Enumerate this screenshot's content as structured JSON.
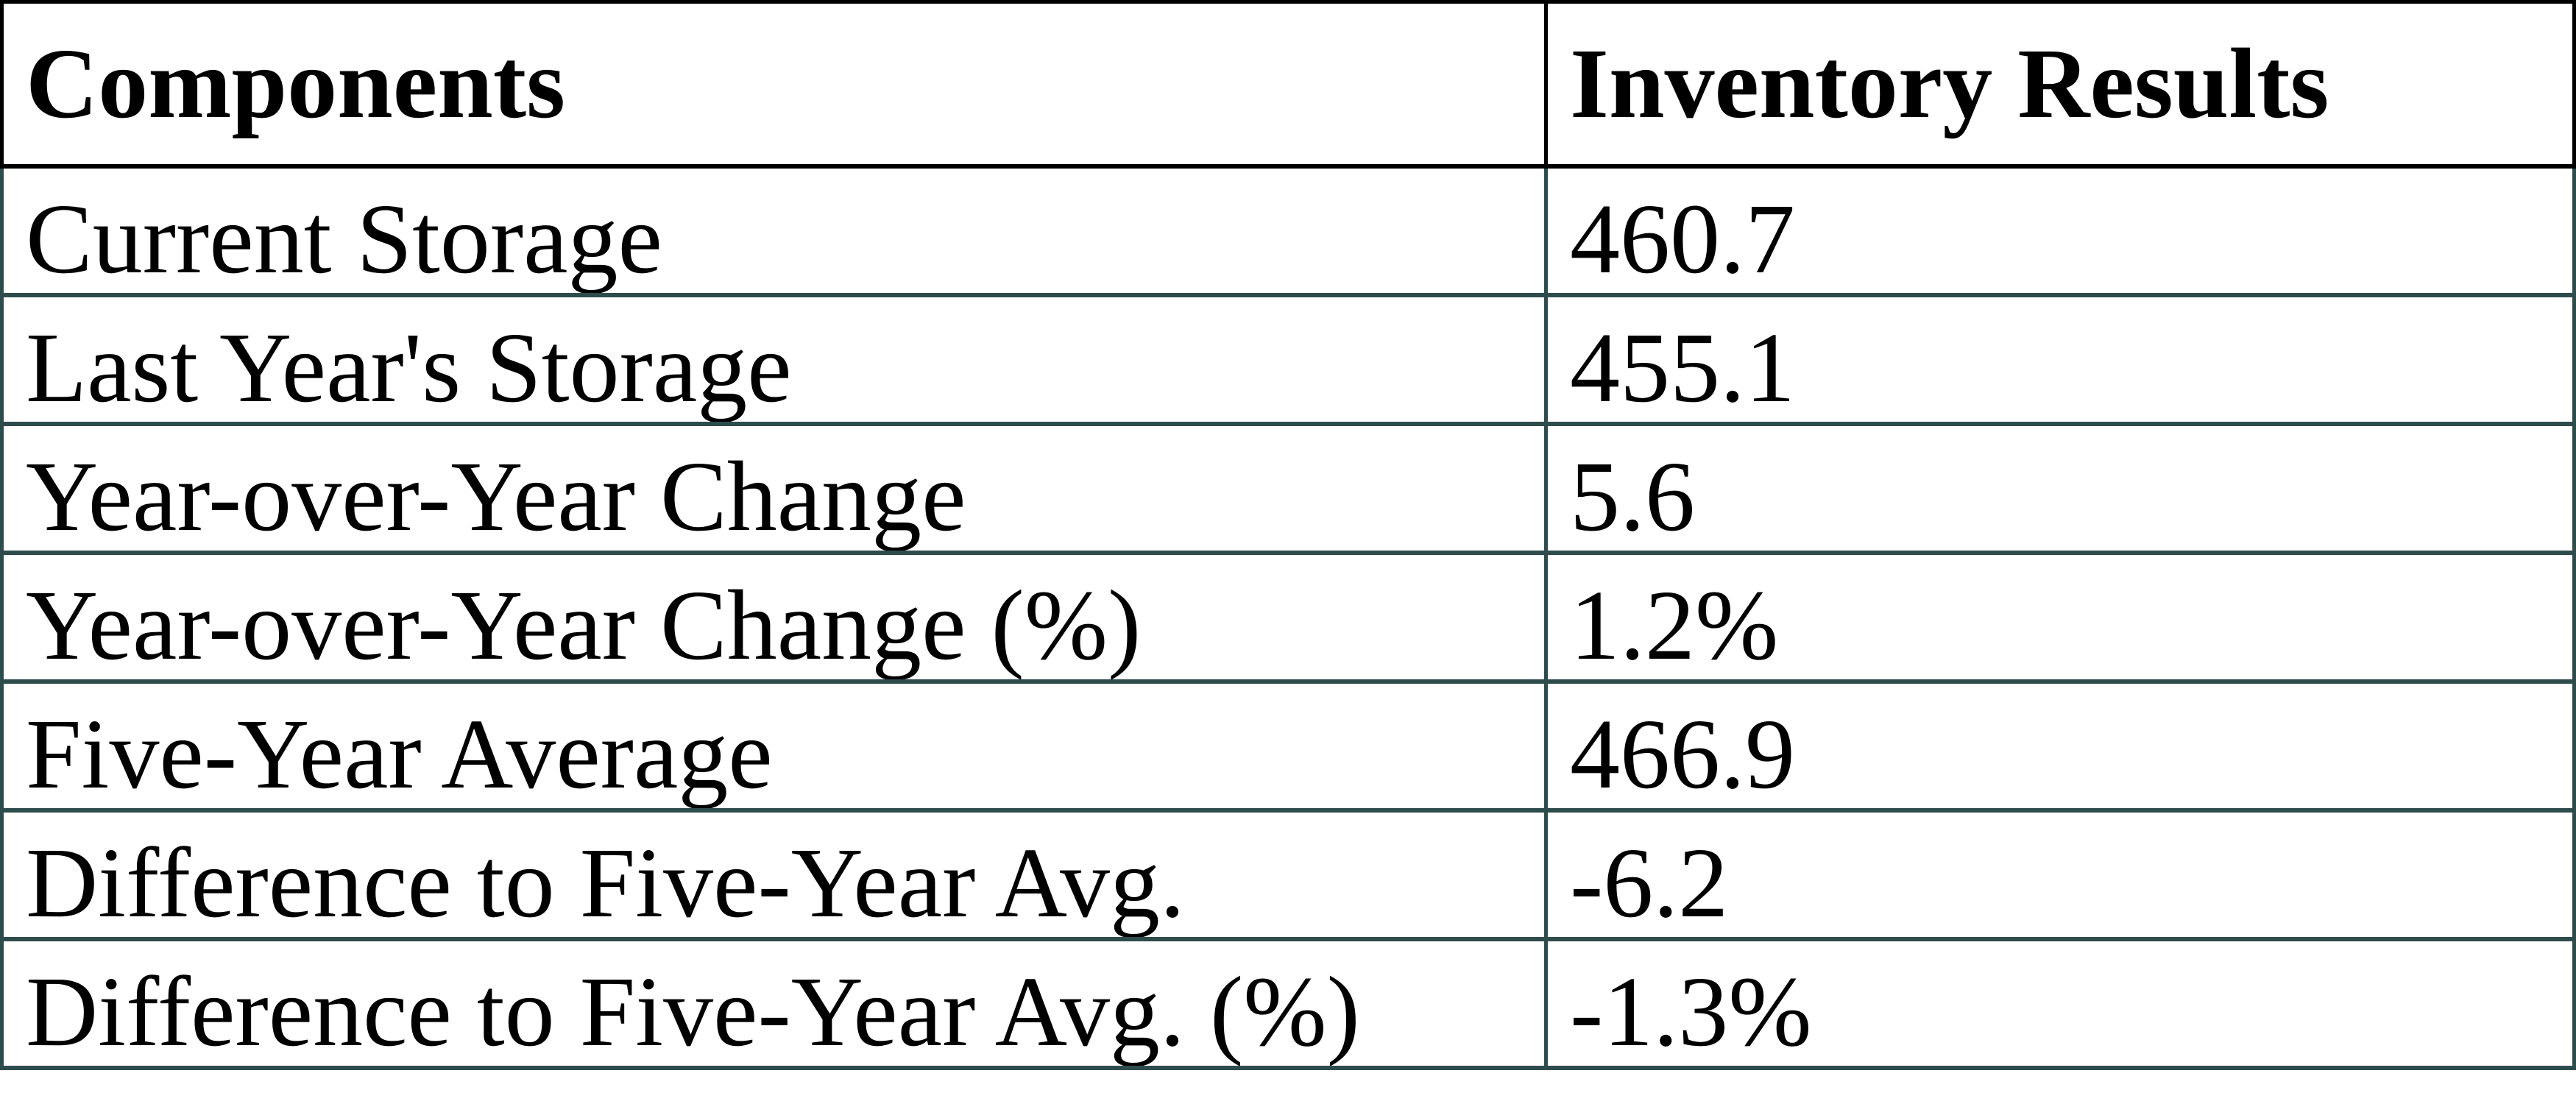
{
  "table": {
    "columns": [
      {
        "label": "Components"
      },
      {
        "label": "Inventory Results"
      }
    ],
    "rows": [
      {
        "component": "Current Storage",
        "value": "460.7"
      },
      {
        "component": "Last Year's Storage",
        "value": "455.1"
      },
      {
        "component": "Year-over-Year Change",
        "value": "5.6"
      },
      {
        "component": "Year-over-Year Change (%)",
        "value": "1.2%"
      },
      {
        "component": "Five-Year Average",
        "value": "466.9"
      },
      {
        "component": "Difference to Five-Year Avg.",
        "value": "-6.2"
      },
      {
        "component": "Difference to Five-Year Avg. (%)",
        "value": "-1.3%"
      }
    ]
  },
  "chart_data": {
    "type": "table",
    "title": "",
    "columns": [
      "Components",
      "Inventory Results"
    ],
    "rows": [
      [
        "Current Storage",
        "460.7"
      ],
      [
        "Last Year's Storage",
        "455.1"
      ],
      [
        "Year-over-Year Change",
        "5.6"
      ],
      [
        "Year-over-Year Change (%)",
        "1.2%"
      ],
      [
        "Five-Year Average",
        "466.9"
      ],
      [
        "Difference to Five-Year Avg.",
        "-6.2"
      ],
      [
        "Difference to Five-Year Avg. (%)",
        "-1.3%"
      ]
    ]
  },
  "colors": {
    "header_border": "#000000",
    "body_border": "#2F4C4C",
    "text": "#000000",
    "background": "#FFFFFF"
  }
}
